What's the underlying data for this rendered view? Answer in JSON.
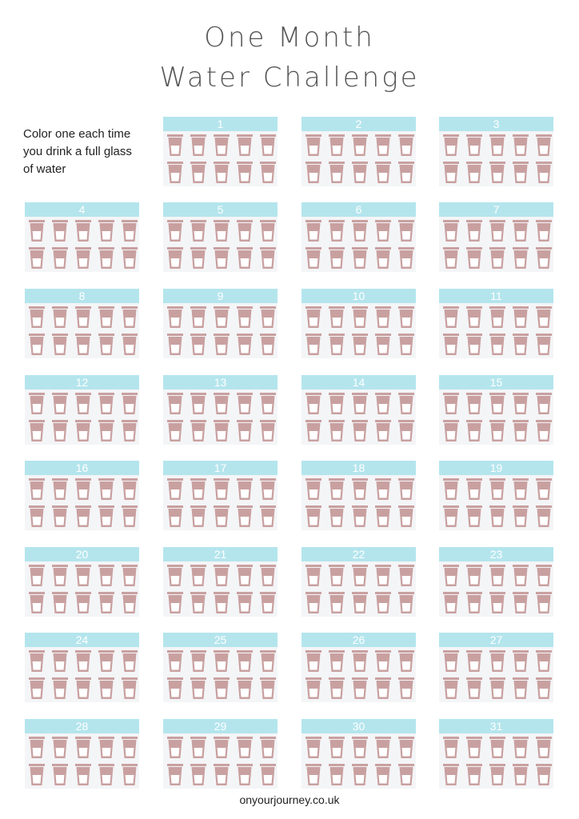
{
  "title": {
    "line1": "One Month",
    "line2": "Water Challenge"
  },
  "instructions": [
    "Color one each time",
    "you drink a full glass",
    "of water"
  ],
  "days": [
    "1",
    "2",
    "3",
    "4",
    "5",
    "6",
    "7",
    "8",
    "9",
    "10",
    "11",
    "12",
    "13",
    "14",
    "15",
    "16",
    "17",
    "18",
    "19",
    "20",
    "21",
    "22",
    "23",
    "24",
    "25",
    "26",
    "27",
    "28",
    "29",
    "30",
    "31"
  ],
  "glasses_per_day": 10,
  "glass_icon": "water-glass-icon",
  "colors": {
    "header": "#b4e5ed",
    "glass": "#c9a0a0",
    "glass_water": "#ffffff",
    "card_background": "#f4f5f7"
  },
  "footer": "onyourjourney.co.uk"
}
